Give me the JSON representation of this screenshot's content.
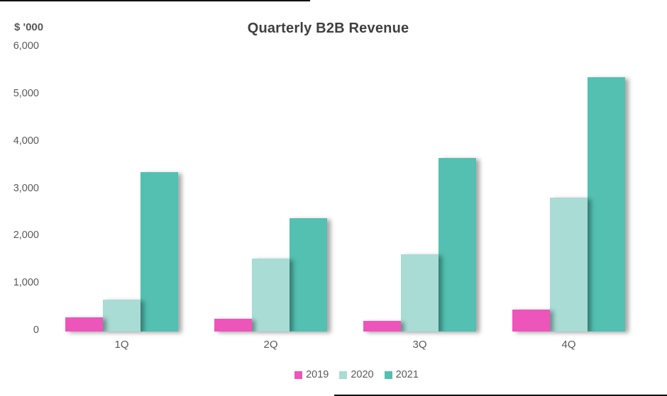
{
  "title": "Quarterly B2B Revenue",
  "axis_unit_label": "$ '000",
  "legend": [
    {
      "label": "2019",
      "color": "#ee55ba"
    },
    {
      "label": "2020",
      "color": "#a8dcd5"
    },
    {
      "label": "2021",
      "color": "#53c0b1"
    }
  ],
  "chart_data": {
    "type": "bar",
    "title": "Quarterly B2B Revenue",
    "ylabel": "$ '000",
    "categories": [
      "1Q",
      "2Q",
      "3Q",
      "4Q"
    ],
    "series": [
      {
        "name": "2019",
        "color": "#ee55ba",
        "values": [
          300,
          270,
          220,
          460
        ]
      },
      {
        "name": "2020",
        "color": "#a8dcd5",
        "values": [
          680,
          1540,
          1630,
          2830
        ]
      },
      {
        "name": "2021",
        "color": "#53c0b1",
        "values": [
          3370,
          2390,
          3670,
          5370
        ]
      }
    ],
    "ylim": [
      0,
      6000
    ],
    "yticks": [
      0,
      1000,
      2000,
      3000,
      4000,
      5000,
      6000
    ],
    "ytick_labels": [
      "0",
      "1,000",
      "2,000",
      "3,000",
      "4,000",
      "5,000",
      "6,000"
    ],
    "grid": false,
    "legend_position": "bottom"
  }
}
